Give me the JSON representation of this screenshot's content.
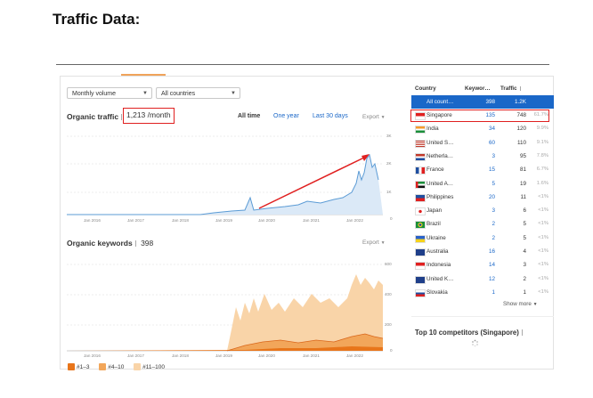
{
  "heading": "Traffic Data:",
  "filters": {
    "volume": "Monthly volume",
    "countries": "All countries"
  },
  "organic_traffic": {
    "title": "Organic traffic",
    "value": "1,213 /month",
    "ranges": [
      "All time",
      "One year",
      "Last 30 days"
    ],
    "export": "Export",
    "y_ticks": [
      "3K",
      "2K",
      "1K",
      "0"
    ],
    "x_ticks": [
      "Jan 2016",
      "Jan 2017",
      "Jan 2018",
      "Jan 2019",
      "Jan 2020",
      "Jan 2021",
      "Jan 2022"
    ]
  },
  "organic_keywords": {
    "title": "Organic keywords",
    "value": "398",
    "export": "Export",
    "y_ticks": [
      "600",
      "400",
      "200",
      "0"
    ],
    "x_ticks": [
      "Jan 2016",
      "Jan 2017",
      "Jan 2018",
      "Jan 2019",
      "Jan 2020",
      "Jan 2021",
      "Jan 2022"
    ],
    "legend": [
      "#1–3",
      "#4–10",
      "#11–100"
    ]
  },
  "table": {
    "headers": {
      "country": "Country",
      "keywords": "Keywor…",
      "traffic": "Traffic"
    },
    "all": {
      "name": "All count…",
      "keywords": "398",
      "traffic": "1.2K"
    },
    "rows": [
      {
        "name": "Singapore",
        "keywords": "135",
        "traffic": "748",
        "pct": "61.7%",
        "flag": "sg"
      },
      {
        "name": "India",
        "keywords": "34",
        "traffic": "120",
        "pct": "9.9%",
        "flag": "in"
      },
      {
        "name": "United S…",
        "keywords": "60",
        "traffic": "110",
        "pct": "9.1%",
        "flag": "us"
      },
      {
        "name": "Netherla…",
        "keywords": "3",
        "traffic": "95",
        "pct": "7.8%",
        "flag": "nl"
      },
      {
        "name": "France",
        "keywords": "15",
        "traffic": "81",
        "pct": "6.7%",
        "flag": "fr"
      },
      {
        "name": "United A…",
        "keywords": "5",
        "traffic": "19",
        "pct": "1.6%",
        "flag": "ae"
      },
      {
        "name": "Philippines",
        "keywords": "20",
        "traffic": "11",
        "pct": "<1%",
        "flag": "ph"
      },
      {
        "name": "Japan",
        "keywords": "3",
        "traffic": "6",
        "pct": "<1%",
        "flag": "jp"
      },
      {
        "name": "Brazil",
        "keywords": "2",
        "traffic": "5",
        "pct": "<1%",
        "flag": "br"
      },
      {
        "name": "Ukraine",
        "keywords": "2",
        "traffic": "5",
        "pct": "<1%",
        "flag": "ua"
      },
      {
        "name": "Australia",
        "keywords": "16",
        "traffic": "4",
        "pct": "<1%",
        "flag": "au"
      },
      {
        "name": "Indonesia",
        "keywords": "14",
        "traffic": "3",
        "pct": "<1%",
        "flag": "id"
      },
      {
        "name": "United K…",
        "keywords": "12",
        "traffic": "2",
        "pct": "<1%",
        "flag": "gb"
      },
      {
        "name": "Slovakia",
        "keywords": "1",
        "traffic": "1",
        "pct": "<1%",
        "flag": "sk"
      }
    ],
    "show_more": "Show more"
  },
  "competitors": {
    "title": "Top 10 competitors (Singapore)"
  },
  "colors": {
    "accent": "#1a67c8",
    "highlight": "#e02020",
    "traffic_line": "#5b9bd5",
    "kw_light": "#f9d4a8",
    "kw_mid": "#f2a65a",
    "kw_dark": "#e8751a"
  }
}
